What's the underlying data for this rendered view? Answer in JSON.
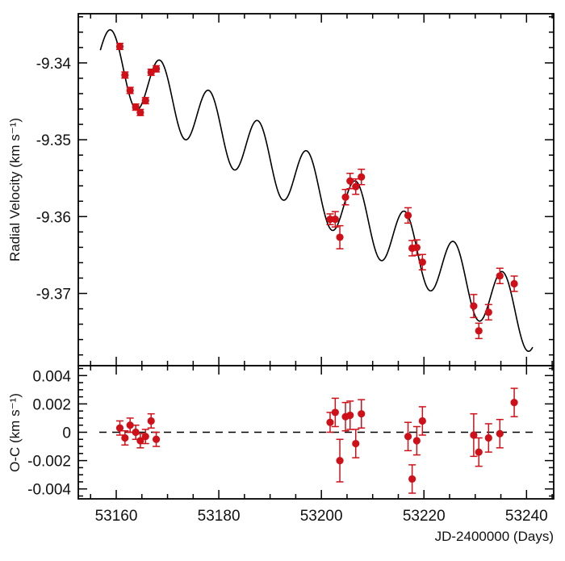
{
  "chart_data": [
    {
      "panel": "top",
      "type": "scatter",
      "ylabel": "Radial Velocity (km s⁻¹)",
      "xlim": [
        53152.6,
        53245.3
      ],
      "ylim": [
        -9.3794,
        -9.3336
      ],
      "x_major_ticks": [
        53160,
        53180,
        53200,
        53220,
        53240
      ],
      "x_minor_step": 5,
      "y_major_ticks": [
        -9.34,
        -9.35,
        -9.36,
        -9.37
      ],
      "y_tick_labels": [
        "-9.34",
        "-9.35",
        "-9.36",
        "-9.37"
      ],
      "y_minor_step": 0.002,
      "grid": false,
      "marker_color": "#d01018",
      "line_color": "#000000",
      "model": {
        "kind": "sinusoid plus linear trend",
        "t0": 53159.04,
        "offset": -9.3399,
        "slope_per_day": -0.000412,
        "semi_amplitude": 0.00416,
        "period_days": 9.545,
        "t_range": [
          53156.9,
          53241.2
        ]
      },
      "points": [
        {
          "x": 53160.7,
          "y": -9.33785,
          "err": 0.0004
        },
        {
          "x": 53161.7,
          "y": -9.34158,
          "err": 0.0004
        },
        {
          "x": 53162.7,
          "y": -9.34358,
          "err": 0.0004
        },
        {
          "x": 53163.8,
          "y": -9.34575,
          "err": 0.0004
        },
        {
          "x": 53164.7,
          "y": -9.34645,
          "err": 0.0004
        },
        {
          "x": 53165.7,
          "y": -9.34491,
          "err": 0.0004
        },
        {
          "x": 53166.8,
          "y": -9.34122,
          "err": 0.0004
        },
        {
          "x": 53167.8,
          "y": -9.34077,
          "err": 0.0004
        },
        {
          "x": 53201.7,
          "y": -9.36035,
          "err": 0.0007
        },
        {
          "x": 53202.7,
          "y": -9.36035,
          "err": 0.001
        },
        {
          "x": 53203.6,
          "y": -9.36269,
          "err": 0.0015
        },
        {
          "x": 53204.7,
          "y": -9.35747,
          "err": 0.001
        },
        {
          "x": 53205.6,
          "y": -9.35537,
          "err": 0.001
        },
        {
          "x": 53206.7,
          "y": -9.3561,
          "err": 0.001
        },
        {
          "x": 53207.8,
          "y": -9.35484,
          "err": 0.001
        },
        {
          "x": 53216.9,
          "y": -9.35985,
          "err": 0.001
        },
        {
          "x": 53217.7,
          "y": -9.36411,
          "err": 0.001
        },
        {
          "x": 53218.6,
          "y": -9.36403,
          "err": 0.001
        },
        {
          "x": 53219.7,
          "y": -9.36593,
          "err": 0.001
        },
        {
          "x": 53229.7,
          "y": -9.37164,
          "err": 0.0015
        },
        {
          "x": 53230.7,
          "y": -9.37487,
          "err": 0.001
        },
        {
          "x": 53232.6,
          "y": -9.37245,
          "err": 0.001
        },
        {
          "x": 53234.8,
          "y": -9.36772,
          "err": 0.001
        },
        {
          "x": 53237.6,
          "y": -9.36874,
          "err": 0.001
        }
      ]
    },
    {
      "panel": "bottom",
      "type": "scatter",
      "xlabel": "JD-2400000 (Days)",
      "ylabel": "O-C (km s⁻¹)",
      "xlim": [
        53152.6,
        53245.3
      ],
      "ylim": [
        -0.0047,
        0.0047
      ],
      "x_major_ticks": [
        53160,
        53180,
        53200,
        53220,
        53240
      ],
      "x_tick_labels": [
        "53160",
        "53180",
        "53200",
        "53220",
        "53240"
      ],
      "x_minor_step": 5,
      "y_major_ticks": [
        0.004,
        0.002,
        0,
        -0.002,
        -0.004
      ],
      "y_tick_labels": [
        "0.004",
        "0.002",
        "0",
        "-0.002",
        "-0.004"
      ],
      "y_minor_step": 0.0005,
      "reference_line": {
        "y": 0,
        "style": "dashed"
      },
      "grid": false,
      "marker_color": "#d01018",
      "points": [
        {
          "x": 53160.7,
          "y": 0.0003,
          "err": 0.0005
        },
        {
          "x": 53161.7,
          "y": -0.0004,
          "err": 0.0005
        },
        {
          "x": 53162.7,
          "y": 0.0005,
          "err": 0.0005
        },
        {
          "x": 53163.8,
          "y": 0.0,
          "err": 0.0005
        },
        {
          "x": 53164.7,
          "y": -0.0006,
          "err": 0.0005
        },
        {
          "x": 53165.7,
          "y": -0.0003,
          "err": 0.0005
        },
        {
          "x": 53166.8,
          "y": 0.0008,
          "err": 0.0005
        },
        {
          "x": 53167.8,
          "y": -0.0005,
          "err": 0.0005
        },
        {
          "x": 53201.7,
          "y": 0.0007,
          "err": 0.0007
        },
        {
          "x": 53202.7,
          "y": 0.0014,
          "err": 0.001
        },
        {
          "x": 53203.6,
          "y": -0.002,
          "err": 0.0015
        },
        {
          "x": 53204.7,
          "y": 0.0011,
          "err": 0.001
        },
        {
          "x": 53205.6,
          "y": 0.0012,
          "err": 0.001
        },
        {
          "x": 53206.7,
          "y": -0.0008,
          "err": 0.001
        },
        {
          "x": 53207.8,
          "y": 0.0013,
          "err": 0.001
        },
        {
          "x": 53216.9,
          "y": -0.0003,
          "err": 0.001
        },
        {
          "x": 53217.7,
          "y": -0.0033,
          "err": 0.001
        },
        {
          "x": 53218.6,
          "y": -0.0006,
          "err": 0.001
        },
        {
          "x": 53219.7,
          "y": 0.0008,
          "err": 0.001
        },
        {
          "x": 53229.7,
          "y": -0.0002,
          "err": 0.0015
        },
        {
          "x": 53230.7,
          "y": -0.0014,
          "err": 0.001
        },
        {
          "x": 53232.6,
          "y": -0.0004,
          "err": 0.001
        },
        {
          "x": 53234.8,
          "y": -0.0001,
          "err": 0.001
        },
        {
          "x": 53237.6,
          "y": 0.0021,
          "err": 0.001
        }
      ]
    }
  ]
}
